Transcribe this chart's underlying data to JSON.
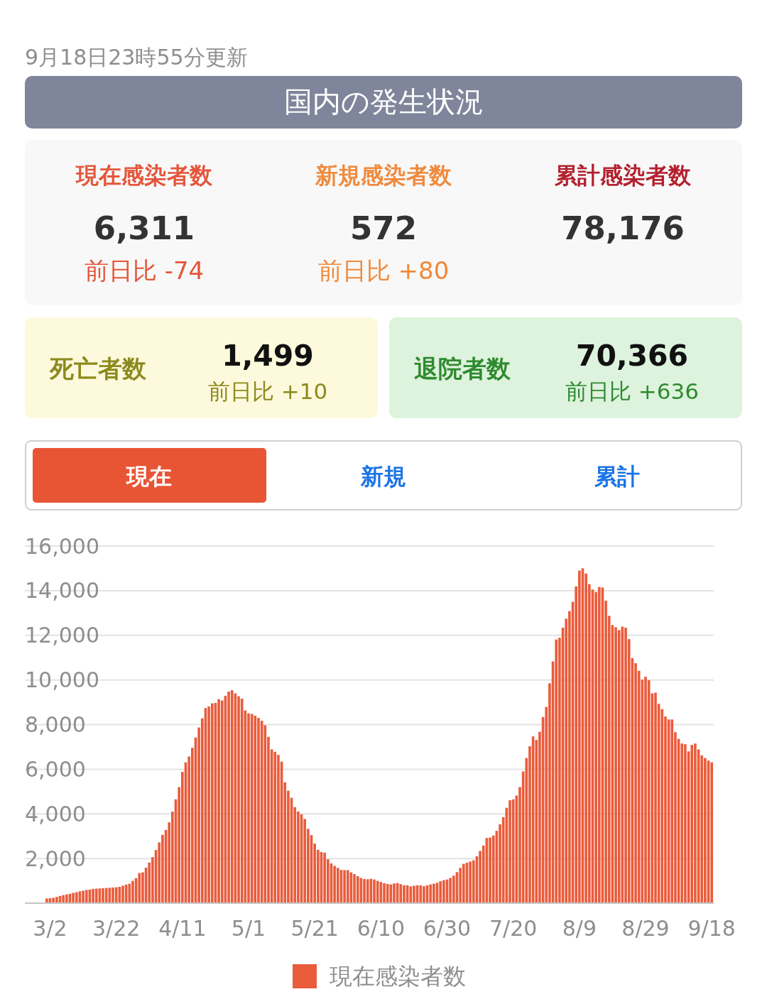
{
  "chart_data": [
    {
      "type": "other",
      "title": "国内の発生状況",
      "subtitle": "9月18日23時55分更新",
      "annotations": [
        "現在感染者数",
        "新規感染者数",
        "累計感染者数",
        "6,311",
        "572",
        "78,176",
        "前日比 -74",
        "前日比 +80",
        "死亡者数",
        "1,499",
        "前日比 +10",
        "退院者数",
        "70,366",
        "前日比 +636",
        "現在",
        "新規",
        "累計"
      ]
    },
    {
      "type": "bar",
      "categories": [
        null,
        "3/2",
        null,
        null,
        null,
        null,
        null,
        null,
        null,
        null,
        null,
        null,
        null,
        null,
        null,
        null,
        null,
        null,
        null,
        null,
        null,
        "3/22",
        null,
        null,
        null,
        null,
        null,
        null,
        null,
        null,
        null,
        null,
        null,
        null,
        null,
        null,
        null,
        null,
        null,
        null,
        null,
        "4/11",
        null,
        null,
        null,
        null,
        null,
        null,
        null,
        null,
        null,
        null,
        null,
        null,
        null,
        null,
        null,
        null,
        null,
        null,
        null,
        "5/1",
        null,
        null,
        null,
        null,
        null,
        null,
        null,
        null,
        null,
        null,
        null,
        null,
        null,
        null,
        null,
        null,
        null,
        null,
        null,
        "5/21",
        null,
        null,
        null,
        null,
        null,
        null,
        null,
        null,
        null,
        null,
        null,
        null,
        null,
        null,
        null,
        null,
        null,
        null,
        null,
        "6/10",
        null,
        null,
        null,
        null,
        null,
        null,
        null,
        null,
        null,
        null,
        null,
        null,
        null,
        null,
        null,
        null,
        null,
        null,
        null,
        "6/30",
        null,
        null,
        null,
        null,
        null,
        null,
        null,
        null,
        null,
        null,
        null,
        null,
        null,
        null,
        null,
        null,
        null,
        null,
        null,
        "7/20",
        null,
        null,
        null,
        null,
        null,
        null,
        null,
        null,
        null,
        null,
        null,
        null,
        null,
        null,
        null,
        null,
        null,
        null,
        null,
        "8/9",
        null,
        null,
        null,
        null,
        null,
        null,
        null,
        null,
        null,
        null,
        null,
        null,
        null,
        null,
        null,
        null,
        null,
        null,
        null,
        "8/29",
        null,
        null,
        null,
        null,
        null,
        null,
        null,
        null,
        null,
        null,
        null,
        null,
        null,
        null,
        null,
        null,
        null,
        null,
        null,
        "9/18"
      ],
      "series": [
        {
          "name": "現在感染者数",
          "color": "#e95c3c",
          "values": [
            210,
            220,
            240,
            280,
            320,
            360,
            390,
            420,
            460,
            490,
            530,
            560,
            590,
            610,
            640,
            650,
            660,
            670,
            680,
            690,
            700,
            710,
            730,
            780,
            830,
            870,
            1000,
            1120,
            1350,
            1380,
            1590,
            1820,
            2060,
            2380,
            2720,
            3060,
            3280,
            3620,
            4100,
            4650,
            5200,
            5880,
            6310,
            6570,
            6960,
            7420,
            7870,
            8280,
            8740,
            8810,
            8950,
            8970,
            9140,
            9080,
            9290,
            9480,
            9540,
            9400,
            9270,
            9160,
            8630,
            8500,
            8480,
            8400,
            8300,
            8170,
            7970,
            7450,
            6890,
            6780,
            6640,
            6340,
            5410,
            5040,
            4720,
            4300,
            4110,
            3980,
            3770,
            3330,
            3050,
            2670,
            2390,
            2290,
            2260,
            1970,
            1780,
            1670,
            1580,
            1490,
            1480,
            1480,
            1380,
            1300,
            1210,
            1130,
            1080,
            1070,
            1090,
            1060,
            1000,
            950,
            890,
            860,
            840,
            880,
            900,
            850,
            800,
            800,
            750,
            780,
            800,
            800,
            760,
            800,
            840,
            870,
            910,
            980,
            1030,
            1060,
            1130,
            1230,
            1390,
            1580,
            1760,
            1810,
            1860,
            1920,
            2100,
            2340,
            2580,
            2920,
            2940,
            3030,
            3240,
            3530,
            3850,
            4270,
            4610,
            4650,
            4820,
            5200,
            5900,
            6500,
            7030,
            7470,
            7310,
            7680,
            8340,
            8790,
            9850,
            10830,
            11810,
            11890,
            12340,
            12740,
            13080,
            13500,
            14190,
            14900,
            15000,
            14770,
            14290,
            14050,
            13940,
            14160,
            14140,
            13550,
            12870,
            12460,
            12360,
            12230,
            12390,
            12340,
            11830,
            10980,
            10750,
            10410,
            10010,
            10140,
            9990,
            9400,
            9430,
            8930,
            8690,
            8360,
            8230,
            8230,
            7660,
            7360,
            7150,
            7120,
            6800,
            7090,
            7150,
            6890,
            6620,
            6500,
            6390,
            6310
          ]
        }
      ],
      "ylim": [
        0,
        16000
      ],
      "yticks": [
        {
          "value": 2000,
          "label": "2,000"
        },
        {
          "value": 4000,
          "label": "4,000"
        },
        {
          "value": 6000,
          "label": "6,000"
        },
        {
          "value": 8000,
          "label": "8,000"
        },
        {
          "value": 10000,
          "label": "10,000"
        },
        {
          "value": 12000,
          "label": "12,000"
        },
        {
          "value": 14000,
          "label": "14,000"
        },
        {
          "value": 16000,
          "label": "16,000"
        }
      ],
      "grid": "y",
      "legend": "bottom"
    }
  ]
}
